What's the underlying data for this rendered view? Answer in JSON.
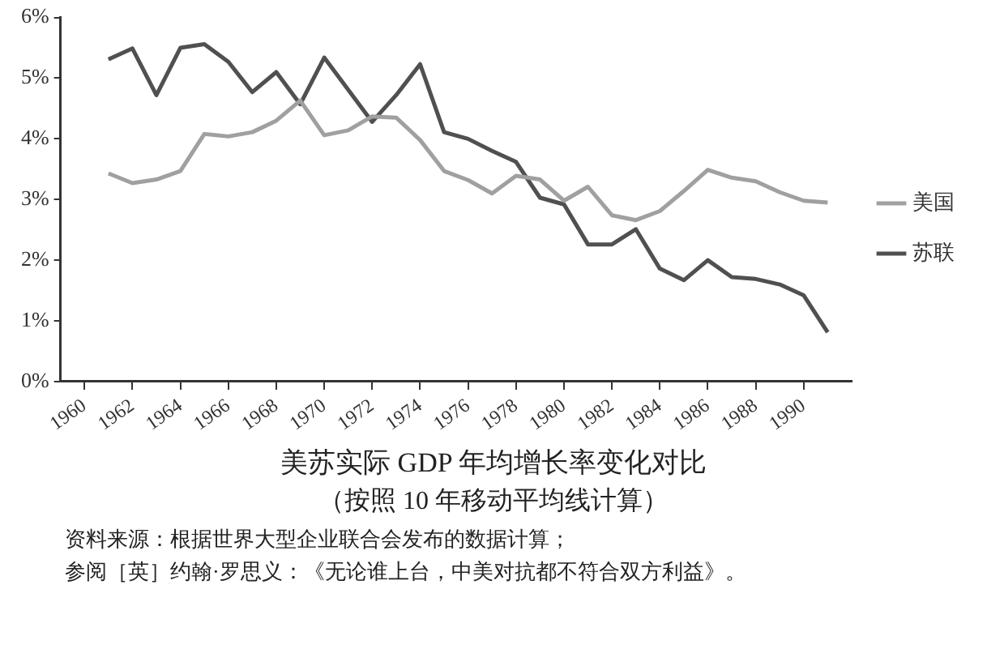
{
  "chart_data": {
    "type": "line",
    "title": "美苏实际 GDP 年均增长率变化对比",
    "subtitle": "（按照 10 年移动平均线计算）",
    "annotations": [
      "资料来源：根据世界大型企业联合会发布的数据计算；",
      "参阅［英］约翰·罗思义：《无论谁上台，中美对抗都不符合双方利益》。"
    ],
    "x": [
      1961,
      1962,
      1963,
      1964,
      1965,
      1966,
      1967,
      1968,
      1969,
      1970,
      1971,
      1972,
      1973,
      1974,
      1975,
      1976,
      1977,
      1978,
      1979,
      1980,
      1981,
      1982,
      1983,
      1984,
      1985,
      1986,
      1987,
      1988,
      1989,
      1990,
      1991
    ],
    "series": [
      {
        "name": "美国",
        "color": "#a0a0a0",
        "values": [
          3.43,
          3.27,
          3.33,
          3.47,
          4.08,
          4.04,
          4.11,
          4.3,
          4.63,
          4.06,
          4.14,
          4.37,
          4.35,
          3.98,
          3.47,
          3.32,
          3.1,
          3.39,
          3.33,
          2.98,
          3.21,
          2.74,
          2.66,
          2.81,
          3.14,
          3.49,
          3.36,
          3.3,
          3.12,
          2.98,
          2.95
        ]
      },
      {
        "name": "苏联",
        "color": "#505050",
        "values": [
          5.31,
          5.49,
          4.72,
          5.5,
          5.56,
          5.27,
          4.77,
          5.1,
          4.57,
          5.34,
          4.81,
          4.28,
          4.72,
          5.23,
          4.11,
          4.0,
          3.8,
          3.62,
          3.03,
          2.92,
          2.26,
          2.26,
          2.51,
          1.86,
          1.67,
          2.0,
          1.72,
          1.69,
          1.6,
          1.42,
          0.81
        ]
      }
    ],
    "xlim": [
      1959,
      1992
    ],
    "xticks": [
      1960,
      1962,
      1964,
      1966,
      1968,
      1970,
      1972,
      1974,
      1976,
      1978,
      1980,
      1982,
      1984,
      1986,
      1988,
      1990
    ],
    "ylim": [
      0,
      6
    ],
    "yticks": [
      {
        "value": 0,
        "label": "0%"
      },
      {
        "value": 1,
        "label": "1%"
      },
      {
        "value": 2,
        "label": "2%"
      },
      {
        "value": 3,
        "label": "3%"
      },
      {
        "value": 4,
        "label": "4%"
      },
      {
        "value": 5,
        "label": "5%"
      },
      {
        "value": 6,
        "label": "6%"
      }
    ],
    "grid": false,
    "legend": "right",
    "marker": "none",
    "line_style": "solid"
  }
}
